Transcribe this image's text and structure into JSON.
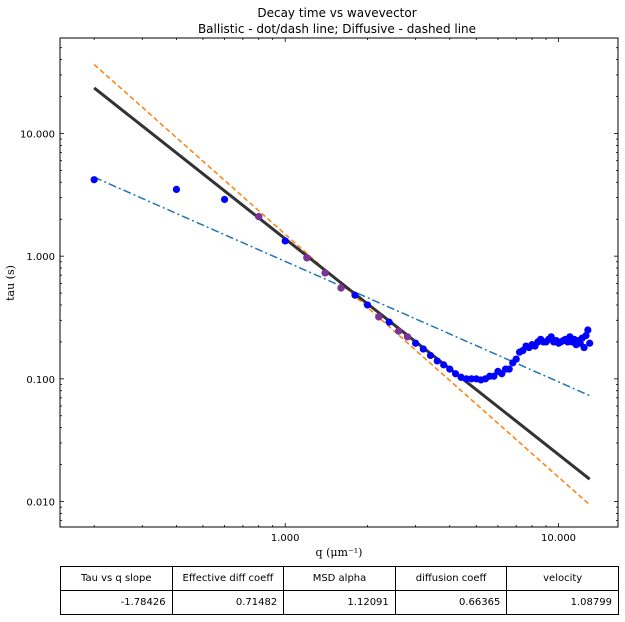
{
  "chart_data": {
    "type": "scatter",
    "title": "Decay time vs wavevector",
    "subtitle": "Ballistic - dot/dash line; Diffusive - dashed line",
    "xlabel": "q (μm⁻¹)",
    "ylabel": "tau (s)",
    "xscale": "log",
    "yscale": "log",
    "xlim": [
      0.15,
      16.5
    ],
    "ylim": [
      0.0062,
      60
    ],
    "x_ticks": [
      1.0,
      10.0
    ],
    "x_tick_labels": [
      "1.000",
      "10.000"
    ],
    "y_ticks": [
      0.01,
      0.1,
      1.0,
      10.0
    ],
    "y_tick_labels": [
      "0.010",
      "0.100",
      "1.000",
      "10.000"
    ],
    "grid": false,
    "colors": {
      "points": "#0000ff",
      "fit": "#333333",
      "diffusive": "#ff7f0e",
      "ballistic": "#1f77b4",
      "highlight": "#8b3a8b"
    },
    "points": {
      "x": [
        0.2,
        0.4,
        0.6,
        0.8,
        1.0,
        1.2,
        1.4,
        1.6,
        1.8,
        2.0,
        2.2,
        2.4,
        2.6,
        2.8,
        3.0,
        3.2,
        3.4,
        3.6,
        3.8,
        4.0,
        4.2,
        4.4,
        4.6,
        4.8,
        5.0,
        5.2,
        5.4,
        5.6,
        5.8,
        6.0,
        6.2,
        6.4,
        6.6,
        6.8,
        7.0,
        7.2,
        7.4,
        7.6,
        7.8,
        8.0,
        8.2,
        8.4,
        8.6,
        8.8,
        9.0,
        9.2,
        9.4,
        9.6,
        9.8,
        10.0,
        10.2,
        10.4,
        10.6,
        10.8,
        11.0,
        11.2,
        11.4,
        11.6,
        11.8,
        12.0,
        12.2,
        12.4,
        12.6,
        12.8,
        13.0
      ],
      "y": [
        4.2,
        3.5,
        2.9,
        2.1,
        1.33,
        0.97,
        0.73,
        0.55,
        0.48,
        0.4,
        0.32,
        0.29,
        0.245,
        0.22,
        0.195,
        0.175,
        0.155,
        0.14,
        0.13,
        0.12,
        0.11,
        0.103,
        0.1,
        0.1,
        0.1,
        0.098,
        0.1,
        0.105,
        0.105,
        0.115,
        0.11,
        0.12,
        0.12,
        0.135,
        0.145,
        0.165,
        0.17,
        0.185,
        0.18,
        0.19,
        0.185,
        0.2,
        0.21,
        0.2,
        0.2,
        0.21,
        0.22,
        0.2,
        0.205,
        0.195,
        0.2,
        0.205,
        0.21,
        0.2,
        0.22,
        0.2,
        0.21,
        0.19,
        0.205,
        0.195,
        0.215,
        0.18,
        0.225,
        0.25,
        0.195
      ]
    },
    "highlighted_points": {
      "x": [
        0.8,
        1.2,
        1.4,
        1.6,
        2.2,
        2.6,
        2.8
      ],
      "y": [
        2.1,
        0.97,
        0.73,
        0.55,
        0.32,
        0.245,
        0.22
      ]
    },
    "lines": [
      {
        "name": "fit",
        "style": "solid",
        "x": [
          0.2,
          13.0
        ],
        "y": [
          23.5,
          0.0152
        ]
      },
      {
        "name": "diffusive",
        "style": "dashed",
        "x": [
          0.2,
          13.0
        ],
        "y": [
          36.5,
          0.0094
        ]
      },
      {
        "name": "ballistic",
        "style": "dashdot",
        "x": [
          0.2,
          13.0
        ],
        "y": [
          4.4,
          0.073
        ]
      }
    ]
  },
  "table": {
    "headers": [
      "Tau vs q slope",
      "Effective diff coeff",
      "MSD alpha",
      "diffusion coeff",
      "velocity"
    ],
    "values": [
      "-1.78426",
      "0.71482",
      "1.12091",
      "0.66365",
      "1.08799"
    ]
  }
}
